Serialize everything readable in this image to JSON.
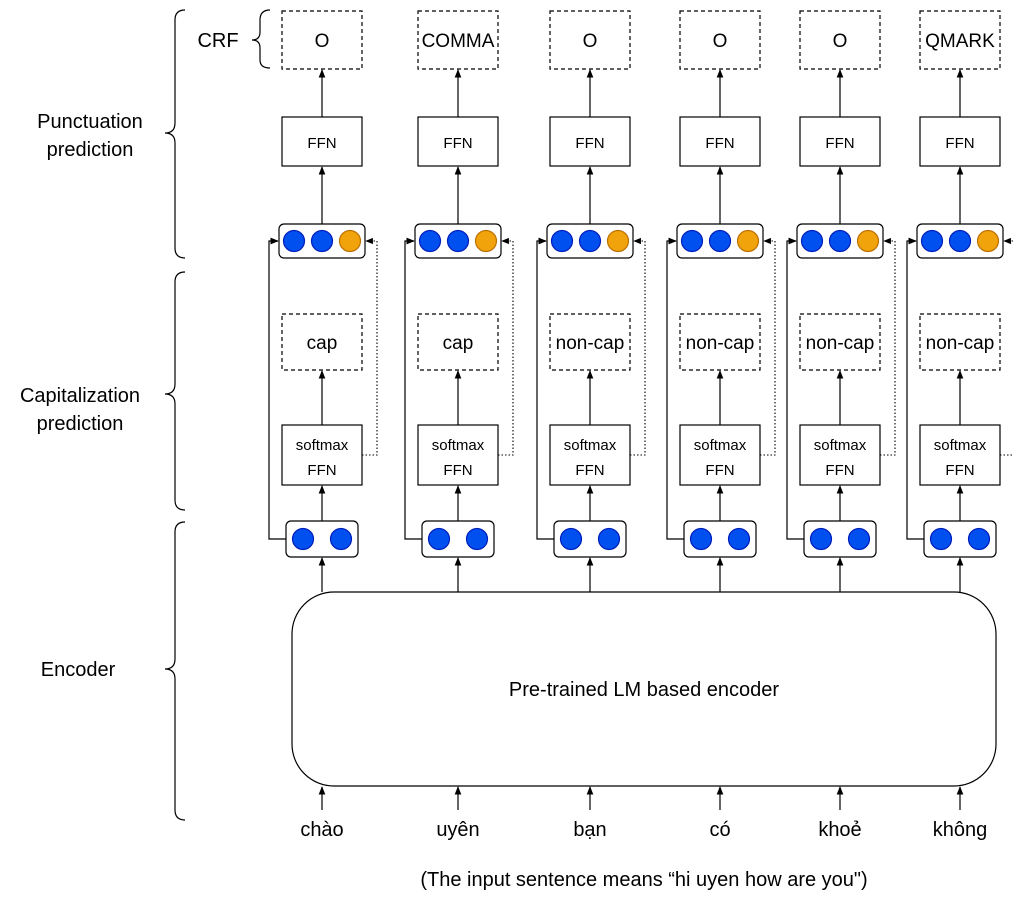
{
  "sections": {
    "punctuation": "Punctuation\nprediction",
    "capitalization": "Capitalization\nprediction",
    "encoder": "Encoder",
    "crf": "CRF"
  },
  "encoder_label": "Pre-trained LM based encoder",
  "ffn_label": "FFN",
  "softmax_label": "softmax",
  "caption": "(The input sentence means “hi uyen how are you\")",
  "colors": {
    "blue": "#0050EF",
    "blue_stroke": "#001DBC",
    "orange": "#F0A30A",
    "orange_stroke": "#BD7000"
  },
  "columns": [
    {
      "word": "chào",
      "cap": "cap",
      "punct": "O"
    },
    {
      "word": "uyên",
      "cap": "cap",
      "punct": "COMMA"
    },
    {
      "word": "bạn",
      "cap": "non-cap",
      "punct": "O"
    },
    {
      "word": "có",
      "cap": "non-cap",
      "punct": "O"
    },
    {
      "word": "khoẻ",
      "cap": "non-cap",
      "punct": "O"
    },
    {
      "word": "không",
      "cap": "non-cap",
      "punct": "QMARK"
    }
  ]
}
